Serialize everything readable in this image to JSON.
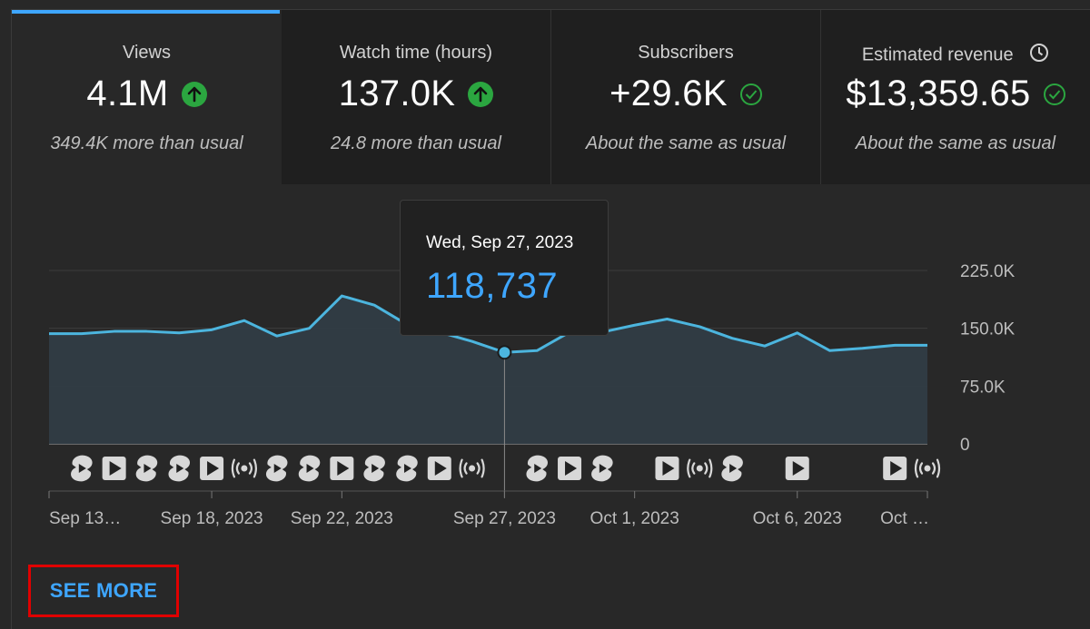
{
  "tabs": [
    {
      "title": "Views",
      "value": "4.1M",
      "status": "up",
      "note": "349.4K more than usual",
      "active": true
    },
    {
      "title": "Watch time (hours)",
      "value": "137.0K",
      "status": "up",
      "note": "24.8 more than usual",
      "active": false
    },
    {
      "title": "Subscribers",
      "value": "+29.6K",
      "status": "same",
      "note": "About the same as usual",
      "active": false
    },
    {
      "title": "Estimated revenue",
      "value": "$13,359.65",
      "status": "same",
      "note": "About the same as usual",
      "active": false,
      "icon": "clock-icon"
    }
  ],
  "colors": {
    "accent": "#3ea6ff",
    "line": "#4cb5de",
    "up": "#2ba640",
    "highlight_box": "#e00000"
  },
  "tooltip": {
    "date": "Wed, Sep 27, 2023",
    "value": "118,737"
  },
  "see_more_label": "SEE MORE",
  "chart_data": {
    "type": "area",
    "y_ticks": [
      "225.0K",
      "150.0K",
      "75.0K",
      "0"
    ],
    "ylim": [
      0,
      225000
    ],
    "x_tick_labels": [
      "Sep 13…",
      "Sep 18, 2023",
      "Sep 22, 2023",
      "Sep 27, 2023",
      "Oct 1, 2023",
      "Oct 6, 2023",
      "Oct …"
    ],
    "x_tick_dates": [
      "2023-09-13",
      "2023-09-18",
      "2023-09-22",
      "2023-09-27",
      "2023-10-01",
      "2023-10-06",
      "2023-10-10"
    ],
    "grid": true,
    "series": [
      {
        "dates": [
          "2023-09-13",
          "2023-09-14",
          "2023-09-15",
          "2023-09-16",
          "2023-09-17",
          "2023-09-18",
          "2023-09-19",
          "2023-09-20",
          "2023-09-21",
          "2023-09-22",
          "2023-09-23",
          "2023-09-24",
          "2023-09-25",
          "2023-09-26",
          "2023-09-27",
          "2023-09-28",
          "2023-09-29",
          "2023-09-30",
          "2023-10-01",
          "2023-10-02",
          "2023-10-03",
          "2023-10-04",
          "2023-10-05",
          "2023-10-06",
          "2023-10-07",
          "2023-10-08",
          "2023-10-09",
          "2023-10-10"
        ],
        "values": [
          143000,
          143000,
          146000,
          146000,
          144000,
          148000,
          160000,
          140000,
          150000,
          192000,
          180000,
          155000,
          145000,
          133000,
          118737,
          121000,
          145000,
          145000,
          154000,
          162000,
          152000,
          137000,
          127000,
          144000,
          121000,
          124000,
          128000,
          128000
        ]
      }
    ],
    "highlight_date": "2023-09-27",
    "event_markers": [
      {
        "date": "2023-09-14",
        "kind": "shorts"
      },
      {
        "date": "2023-09-15",
        "kind": "video"
      },
      {
        "date": "2023-09-16",
        "kind": "shorts"
      },
      {
        "date": "2023-09-17",
        "kind": "shorts"
      },
      {
        "date": "2023-09-18",
        "kind": "video"
      },
      {
        "date": "2023-09-19",
        "kind": "live"
      },
      {
        "date": "2023-09-20",
        "kind": "shorts"
      },
      {
        "date": "2023-09-21",
        "kind": "shorts"
      },
      {
        "date": "2023-09-22",
        "kind": "video"
      },
      {
        "date": "2023-09-23",
        "kind": "shorts"
      },
      {
        "date": "2023-09-24",
        "kind": "shorts"
      },
      {
        "date": "2023-09-25",
        "kind": "video"
      },
      {
        "date": "2023-09-26",
        "kind": "live"
      },
      {
        "date": "2023-09-28",
        "kind": "shorts"
      },
      {
        "date": "2023-09-29",
        "kind": "video"
      },
      {
        "date": "2023-09-30",
        "kind": "shorts"
      },
      {
        "date": "2023-10-02",
        "kind": "video"
      },
      {
        "date": "2023-10-03",
        "kind": "live"
      },
      {
        "date": "2023-10-04",
        "kind": "shorts"
      },
      {
        "date": "2023-10-06",
        "kind": "video"
      },
      {
        "date": "2023-10-09",
        "kind": "video"
      },
      {
        "date": "2023-10-10",
        "kind": "live"
      }
    ]
  }
}
